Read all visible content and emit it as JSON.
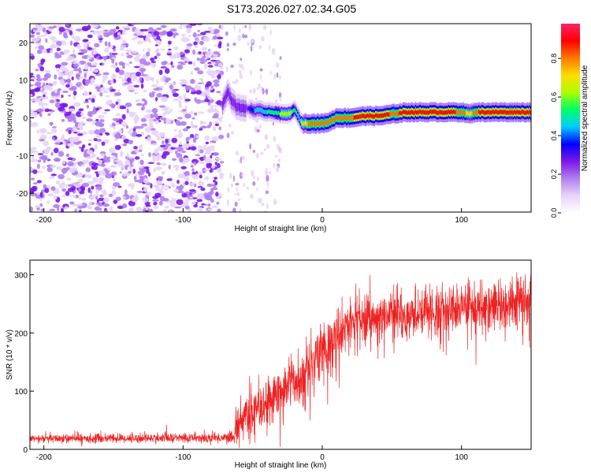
{
  "title": "S173.2026.027.02.34.G05",
  "colors": {
    "snr_line": "#ee2222",
    "axis": "#000000",
    "colormap": [
      "#ffffff",
      "#e7d4f8",
      "#b07ef0",
      "#7a18e8",
      "#0000ff",
      "#00ccff",
      "#00ff66",
      "#aaff00",
      "#ffdd00",
      "#ff7700",
      "#ff0000",
      "#ff2266"
    ]
  },
  "chart_data": [
    {
      "type": "heatmap",
      "xlabel": "Height of straight line (km)",
      "ylabel": "Frequency (Hz)",
      "xlim": [
        -210,
        150
      ],
      "ylim": [
        -25,
        25
      ],
      "xticks": [
        -200,
        -100,
        0,
        100
      ],
      "xtick_labels": [
        "-200",
        "-100",
        "0",
        "100"
      ],
      "yticks": [
        -20,
        -10,
        0,
        10,
        20
      ],
      "ytick_labels": [
        "-20",
        "-10",
        "0",
        "10",
        "20"
      ],
      "noise_region_x": [
        -210,
        -72
      ],
      "ridge": {
        "x": [
          -72,
          -68,
          -66,
          -62,
          -58,
          -54,
          -50,
          -45,
          -40,
          -35,
          -30,
          -25,
          -20,
          -17,
          -15,
          -10,
          -5,
          0,
          5,
          10,
          20,
          30,
          40,
          50,
          60,
          70,
          80,
          90,
          100,
          105,
          110,
          120,
          130,
          140,
          150
        ],
        "frequency": [
          3.5,
          7.0,
          5.0,
          3.0,
          2.5,
          2.5,
          2.0,
          2.0,
          1.5,
          1.5,
          1.0,
          1.0,
          2.0,
          0.0,
          -1.5,
          -1.5,
          -1.5,
          -1.5,
          -1.0,
          0.0,
          0.0,
          0.5,
          0.5,
          1.0,
          1.5,
          1.5,
          1.5,
          1.5,
          1.5,
          1.0,
          1.5,
          1.5,
          1.5,
          1.5,
          1.5
        ],
        "amplitude": [
          0.3,
          0.35,
          0.3,
          0.3,
          0.3,
          0.35,
          0.45,
          0.5,
          0.55,
          0.6,
          0.65,
          0.7,
          0.6,
          0.5,
          0.7,
          0.85,
          0.9,
          0.9,
          0.85,
          0.9,
          0.9,
          0.95,
          0.95,
          0.9,
          0.92,
          0.95,
          0.95,
          0.92,
          0.9,
          0.75,
          0.9,
          0.95,
          0.95,
          0.95,
          0.95
        ]
      }
    },
    {
      "type": "line",
      "series": [
        {
          "name": "SNR",
          "generator": "noisy SNR trace rising from ~18 (x<-62) to ~250 (x>40)"
        }
      ],
      "xlabel": "Height of straight line (km)",
      "ylabel": "SNR (10 * v/v)",
      "xlim": [
        -210,
        150
      ],
      "ylim": [
        0,
        325
      ],
      "xticks": [
        -200,
        -100,
        0,
        100
      ],
      "xtick_labels": [
        "-200",
        "-100",
        "0",
        "100"
      ],
      "yticks": [
        0,
        100,
        200,
        300
      ],
      "ytick_labels": [
        "0",
        "100",
        "200",
        "300"
      ],
      "trend": {
        "x": [
          -210,
          -63,
          -62,
          -55,
          -40,
          -30,
          -20,
          -10,
          0,
          10,
          20,
          30,
          40,
          60,
          80,
          100,
          120,
          150
        ],
        "mean": [
          18,
          20,
          35,
          60,
          80,
          100,
          115,
          140,
          165,
          195,
          215,
          225,
          230,
          235,
          235,
          240,
          245,
          260
        ],
        "spread": [
          8,
          10,
          35,
          40,
          45,
          50,
          50,
          55,
          55,
          55,
          50,
          45,
          45,
          45,
          45,
          45,
          45,
          45
        ]
      }
    }
  ],
  "colorbar": {
    "label": "Normalized spectral amplitude",
    "ticks": [
      0.0,
      0.2,
      0.4,
      0.6,
      0.8
    ],
    "tick_labels": [
      "0.0",
      "0.2",
      "0.4",
      "0.6",
      "0.8"
    ]
  }
}
